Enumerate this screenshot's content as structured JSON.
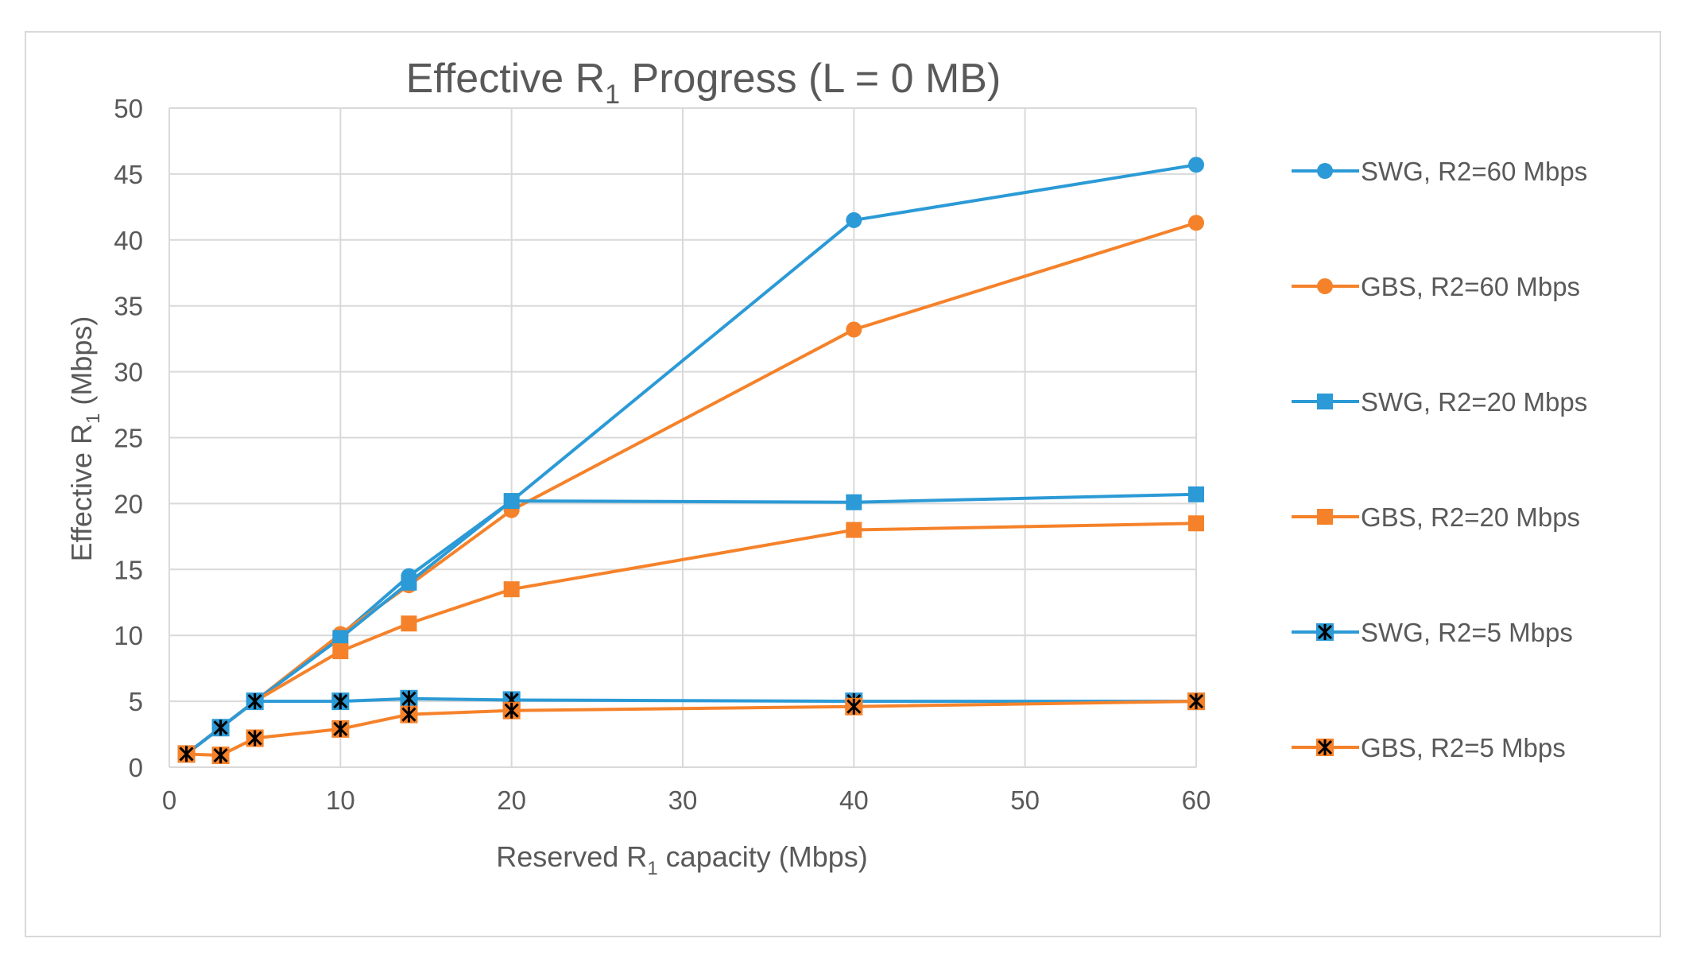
{
  "chart_data": {
    "type": "line",
    "title": {
      "prefix": "Effective R",
      "sub": "1",
      "suffix": " Progress (L = 0 MB)"
    },
    "xlabel": {
      "prefix": "Reserved  R",
      "sub": "1",
      "suffix": " capacity (Mbps)"
    },
    "ylabel": {
      "prefix": "Effective R",
      "sub": "1",
      "suffix": " (Mbps)"
    },
    "xlim": [
      0,
      60
    ],
    "ylim": [
      0,
      50
    ],
    "x_ticks": [
      "0",
      "10",
      "20",
      "30",
      "40",
      "50",
      "60"
    ],
    "y_ticks": [
      "0",
      "5",
      "10",
      "15",
      "20",
      "25",
      "30",
      "35",
      "40",
      "45",
      "50"
    ],
    "grid": true,
    "legend_position": "right",
    "series": [
      {
        "name": "SWG, R2=60 Mbps",
        "color": "#2b9ad6",
        "marker": "circle",
        "x": [
          1,
          3,
          5,
          10,
          14,
          20,
          40,
          60
        ],
        "y": [
          1,
          3,
          5,
          10,
          14.5,
          20.2,
          41.5,
          45.7
        ]
      },
      {
        "name": "GBS, R2=60 Mbps",
        "color": "#f5822a",
        "marker": "circle",
        "x": [
          1,
          3,
          5,
          10,
          14,
          20,
          40,
          60
        ],
        "y": [
          1,
          3,
          5,
          10.1,
          13.8,
          19.5,
          33.2,
          41.3
        ]
      },
      {
        "name": "SWG, R2=20 Mbps",
        "color": "#2b9ad6",
        "marker": "square",
        "x": [
          1,
          3,
          5,
          10,
          14,
          20,
          40,
          60
        ],
        "y": [
          1,
          3,
          5,
          9.8,
          14,
          20.2,
          20.1,
          20.7
        ]
      },
      {
        "name": "GBS, R2=20 Mbps",
        "color": "#f5822a",
        "marker": "square",
        "x": [
          1,
          3,
          5,
          10,
          14,
          20,
          40,
          60
        ],
        "y": [
          1,
          3,
          5,
          8.8,
          10.9,
          13.5,
          18,
          18.5
        ]
      },
      {
        "name": "SWG, R2=5 Mbps",
        "color": "#2b9ad6",
        "marker": "star",
        "x": [
          1,
          3,
          5,
          10,
          14,
          20,
          40,
          60
        ],
        "y": [
          1,
          3,
          5,
          5,
          5.2,
          5.1,
          5,
          5
        ]
      },
      {
        "name": "GBS, R2=5 Mbps",
        "color": "#f5822a",
        "marker": "star",
        "x": [
          1,
          3,
          5,
          10,
          14,
          20,
          40,
          60
        ],
        "y": [
          1,
          0.9,
          2.2,
          2.9,
          4,
          4.3,
          4.6,
          5
        ]
      }
    ]
  }
}
